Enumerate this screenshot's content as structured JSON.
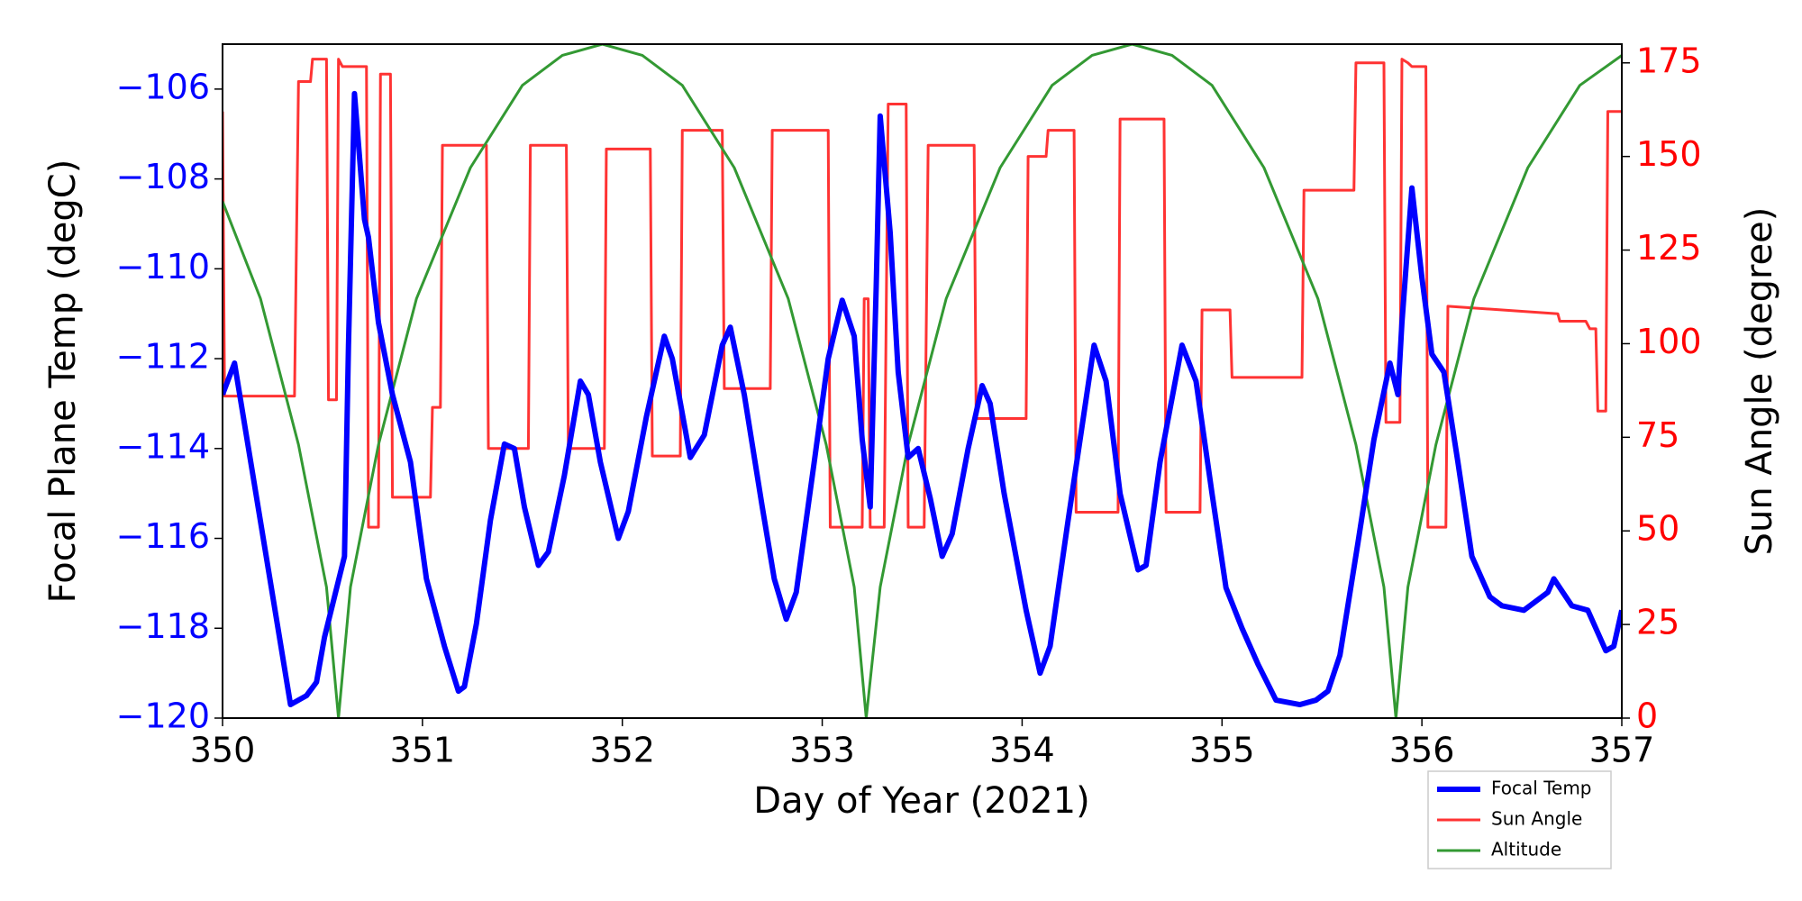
{
  "chart_data": {
    "type": "line",
    "xlabel": "Day of Year (2021)",
    "ylabel": "Focal Plane Temp (degC)",
    "y2label": "Sun Angle (degree)",
    "xlim": [
      350,
      357
    ],
    "xticks": [
      350,
      351,
      352,
      353,
      354,
      355,
      356,
      357
    ],
    "ylim": [
      -120,
      -105
    ],
    "yticks": [
      {
        "value": -120,
        "label": "−120"
      },
      {
        "value": -118,
        "label": "−118"
      },
      {
        "value": -116,
        "label": "−116"
      },
      {
        "value": -114,
        "label": "−114"
      },
      {
        "value": -112,
        "label": "−112"
      },
      {
        "value": -110,
        "label": "−110"
      },
      {
        "value": -108,
        "label": "−108"
      },
      {
        "value": -106,
        "label": "−106"
      }
    ],
    "ylabel_color": "#0000ff",
    "y2lim": [
      0,
      180
    ],
    "y2ticks": [
      0,
      25,
      50,
      75,
      100,
      125,
      150,
      175
    ],
    "y2label_color": "#ff0000",
    "legend": "lower right",
    "series": [
      {
        "name": "Focal Temp",
        "color": "#0000ff",
        "width": 6,
        "x": [
          350.0,
          350.06,
          350.34,
          350.42,
          350.47,
          350.51,
          350.56,
          350.61,
          350.63,
          350.66,
          350.71,
          350.73,
          350.78,
          350.85,
          350.94,
          351.02,
          351.11,
          351.18,
          351.21,
          351.27,
          351.34,
          351.41,
          351.46,
          351.51,
          351.58,
          351.63,
          351.71,
          351.79,
          351.83,
          351.89,
          351.98,
          352.03,
          352.12,
          352.21,
          352.25,
          352.34,
          352.41,
          352.5,
          352.54,
          352.61,
          352.7,
          352.76,
          352.82,
          352.87,
          352.96,
          353.03,
          353.1,
          353.16,
          353.2,
          353.24,
          353.27,
          353.29,
          353.34,
          353.38,
          353.43,
          353.48,
          353.54,
          353.6,
          353.65,
          353.73,
          353.8,
          353.84,
          353.91,
          354.02,
          354.09,
          354.14,
          354.23,
          354.29,
          354.36,
          354.42,
          354.49,
          354.58,
          354.62,
          354.69,
          354.8,
          354.87,
          354.95,
          355.02,
          355.1,
          355.18,
          355.27,
          355.39,
          355.47,
          355.53,
          355.59,
          355.68,
          355.76,
          355.84,
          355.88,
          355.9,
          355.95,
          356.0,
          356.05,
          356.11,
          356.18,
          356.25,
          356.34,
          356.4,
          356.51,
          356.63,
          356.66,
          356.75,
          356.83,
          356.92,
          356.96,
          357.0
        ],
        "values": [
          -112.8,
          -112.1,
          -119.7,
          -119.5,
          -119.2,
          -118.2,
          -117.3,
          -116.4,
          -111.7,
          -106.1,
          -108.9,
          -109.3,
          -111.2,
          -112.8,
          -114.3,
          -116.9,
          -118.4,
          -119.4,
          -119.3,
          -117.9,
          -115.6,
          -113.9,
          -114.0,
          -115.3,
          -116.6,
          -116.3,
          -114.6,
          -112.5,
          -112.8,
          -114.3,
          -116.0,
          -115.4,
          -113.3,
          -111.5,
          -112.0,
          -114.2,
          -113.7,
          -111.7,
          -111.3,
          -112.8,
          -115.3,
          -116.9,
          -117.8,
          -117.2,
          -114.3,
          -112.0,
          -110.7,
          -111.5,
          -113.8,
          -115.3,
          -110.4,
          -106.6,
          -109.2,
          -112.3,
          -114.2,
          -114.0,
          -115.1,
          -116.4,
          -115.9,
          -114.0,
          -112.6,
          -113.0,
          -115.0,
          -117.6,
          -119.0,
          -118.4,
          -115.6,
          -113.8,
          -111.7,
          -112.5,
          -115.0,
          -116.7,
          -116.6,
          -114.3,
          -111.7,
          -112.5,
          -115.0,
          -117.1,
          -118.0,
          -118.8,
          -119.6,
          -119.7,
          -119.6,
          -119.4,
          -118.6,
          -116.1,
          -113.8,
          -112.1,
          -112.8,
          -111.2,
          -108.2,
          -110.2,
          -111.9,
          -112.3,
          -114.3,
          -116.4,
          -117.3,
          -117.5,
          -117.6,
          -117.2,
          -116.9,
          -117.5,
          -117.6,
          -118.5,
          -118.4,
          -117.6
        ]
      },
      {
        "name": "Sun Angle",
        "color": "#ff3333",
        "width": 3,
        "axis": "y2",
        "x": [
          350.0,
          350.01,
          350.36,
          350.38,
          350.44,
          350.45,
          350.52,
          350.53,
          350.57,
          350.58,
          350.6,
          350.72,
          350.73,
          350.78,
          350.79,
          350.84,
          350.85,
          351.04,
          351.05,
          351.09,
          351.1,
          351.32,
          351.33,
          351.53,
          351.54,
          351.72,
          351.73,
          351.91,
          351.92,
          352.14,
          352.15,
          352.29,
          352.3,
          352.5,
          352.51,
          352.74,
          352.75,
          353.03,
          353.04,
          353.2,
          353.21,
          353.23,
          353.24,
          353.31,
          353.33,
          353.42,
          353.43,
          353.51,
          353.53,
          353.76,
          353.77,
          354.02,
          354.03,
          354.12,
          354.13,
          354.26,
          354.27,
          354.48,
          354.49,
          354.71,
          354.72,
          354.89,
          354.9,
          355.04,
          355.05,
          355.4,
          355.41,
          355.66,
          355.67,
          355.81,
          355.82,
          355.89,
          355.9,
          355.93,
          355.95,
          356.02,
          356.03,
          356.12,
          356.13,
          356.68,
          356.69,
          356.82,
          356.84,
          356.87,
          356.88,
          356.92,
          356.93,
          357.0
        ],
        "values": [
          162,
          86,
          86,
          170,
          170,
          176,
          176,
          85,
          85,
          176,
          174,
          174,
          51,
          51,
          172,
          172,
          59,
          59,
          83,
          83,
          153,
          153,
          72,
          72,
          153,
          153,
          72,
          72,
          152,
          152,
          70,
          70,
          157,
          157,
          88,
          88,
          157,
          157,
          51,
          51,
          112,
          112,
          51,
          51,
          164,
          164,
          51,
          51,
          153,
          153,
          80,
          80,
          150,
          150,
          157,
          157,
          55,
          55,
          160,
          160,
          55,
          55,
          109,
          109,
          91,
          91,
          141,
          141,
          175,
          175,
          79,
          79,
          176,
          175,
          174,
          174,
          51,
          51,
          110,
          108,
          106,
          106,
          104,
          104,
          82,
          82,
          162,
          162
        ]
      },
      {
        "name": "Altitude",
        "color": "#339933",
        "width": 3,
        "axis": "y2",
        "x": [
          350.0,
          350.19,
          350.38,
          350.52,
          350.58,
          350.64,
          350.78,
          350.97,
          351.24,
          351.5,
          351.7,
          351.9,
          352.1,
          352.3,
          352.56,
          352.83,
          353.02,
          353.16,
          353.22,
          353.29,
          353.43,
          353.62,
          353.89,
          354.15,
          354.35,
          354.55,
          354.75,
          354.95,
          355.21,
          355.48,
          355.67,
          355.81,
          355.87,
          355.93,
          356.07,
          356.26,
          356.53,
          356.79,
          357.0
        ],
        "values": [
          138,
          112,
          73,
          35,
          0,
          35,
          73,
          112,
          147,
          169,
          177,
          180,
          177,
          169,
          147,
          112,
          73,
          35,
          0,
          35,
          73,
          112,
          147,
          169,
          177,
          180,
          177,
          169,
          147,
          112,
          73,
          35,
          0,
          35,
          73,
          112,
          147,
          169,
          177
        ]
      }
    ]
  }
}
